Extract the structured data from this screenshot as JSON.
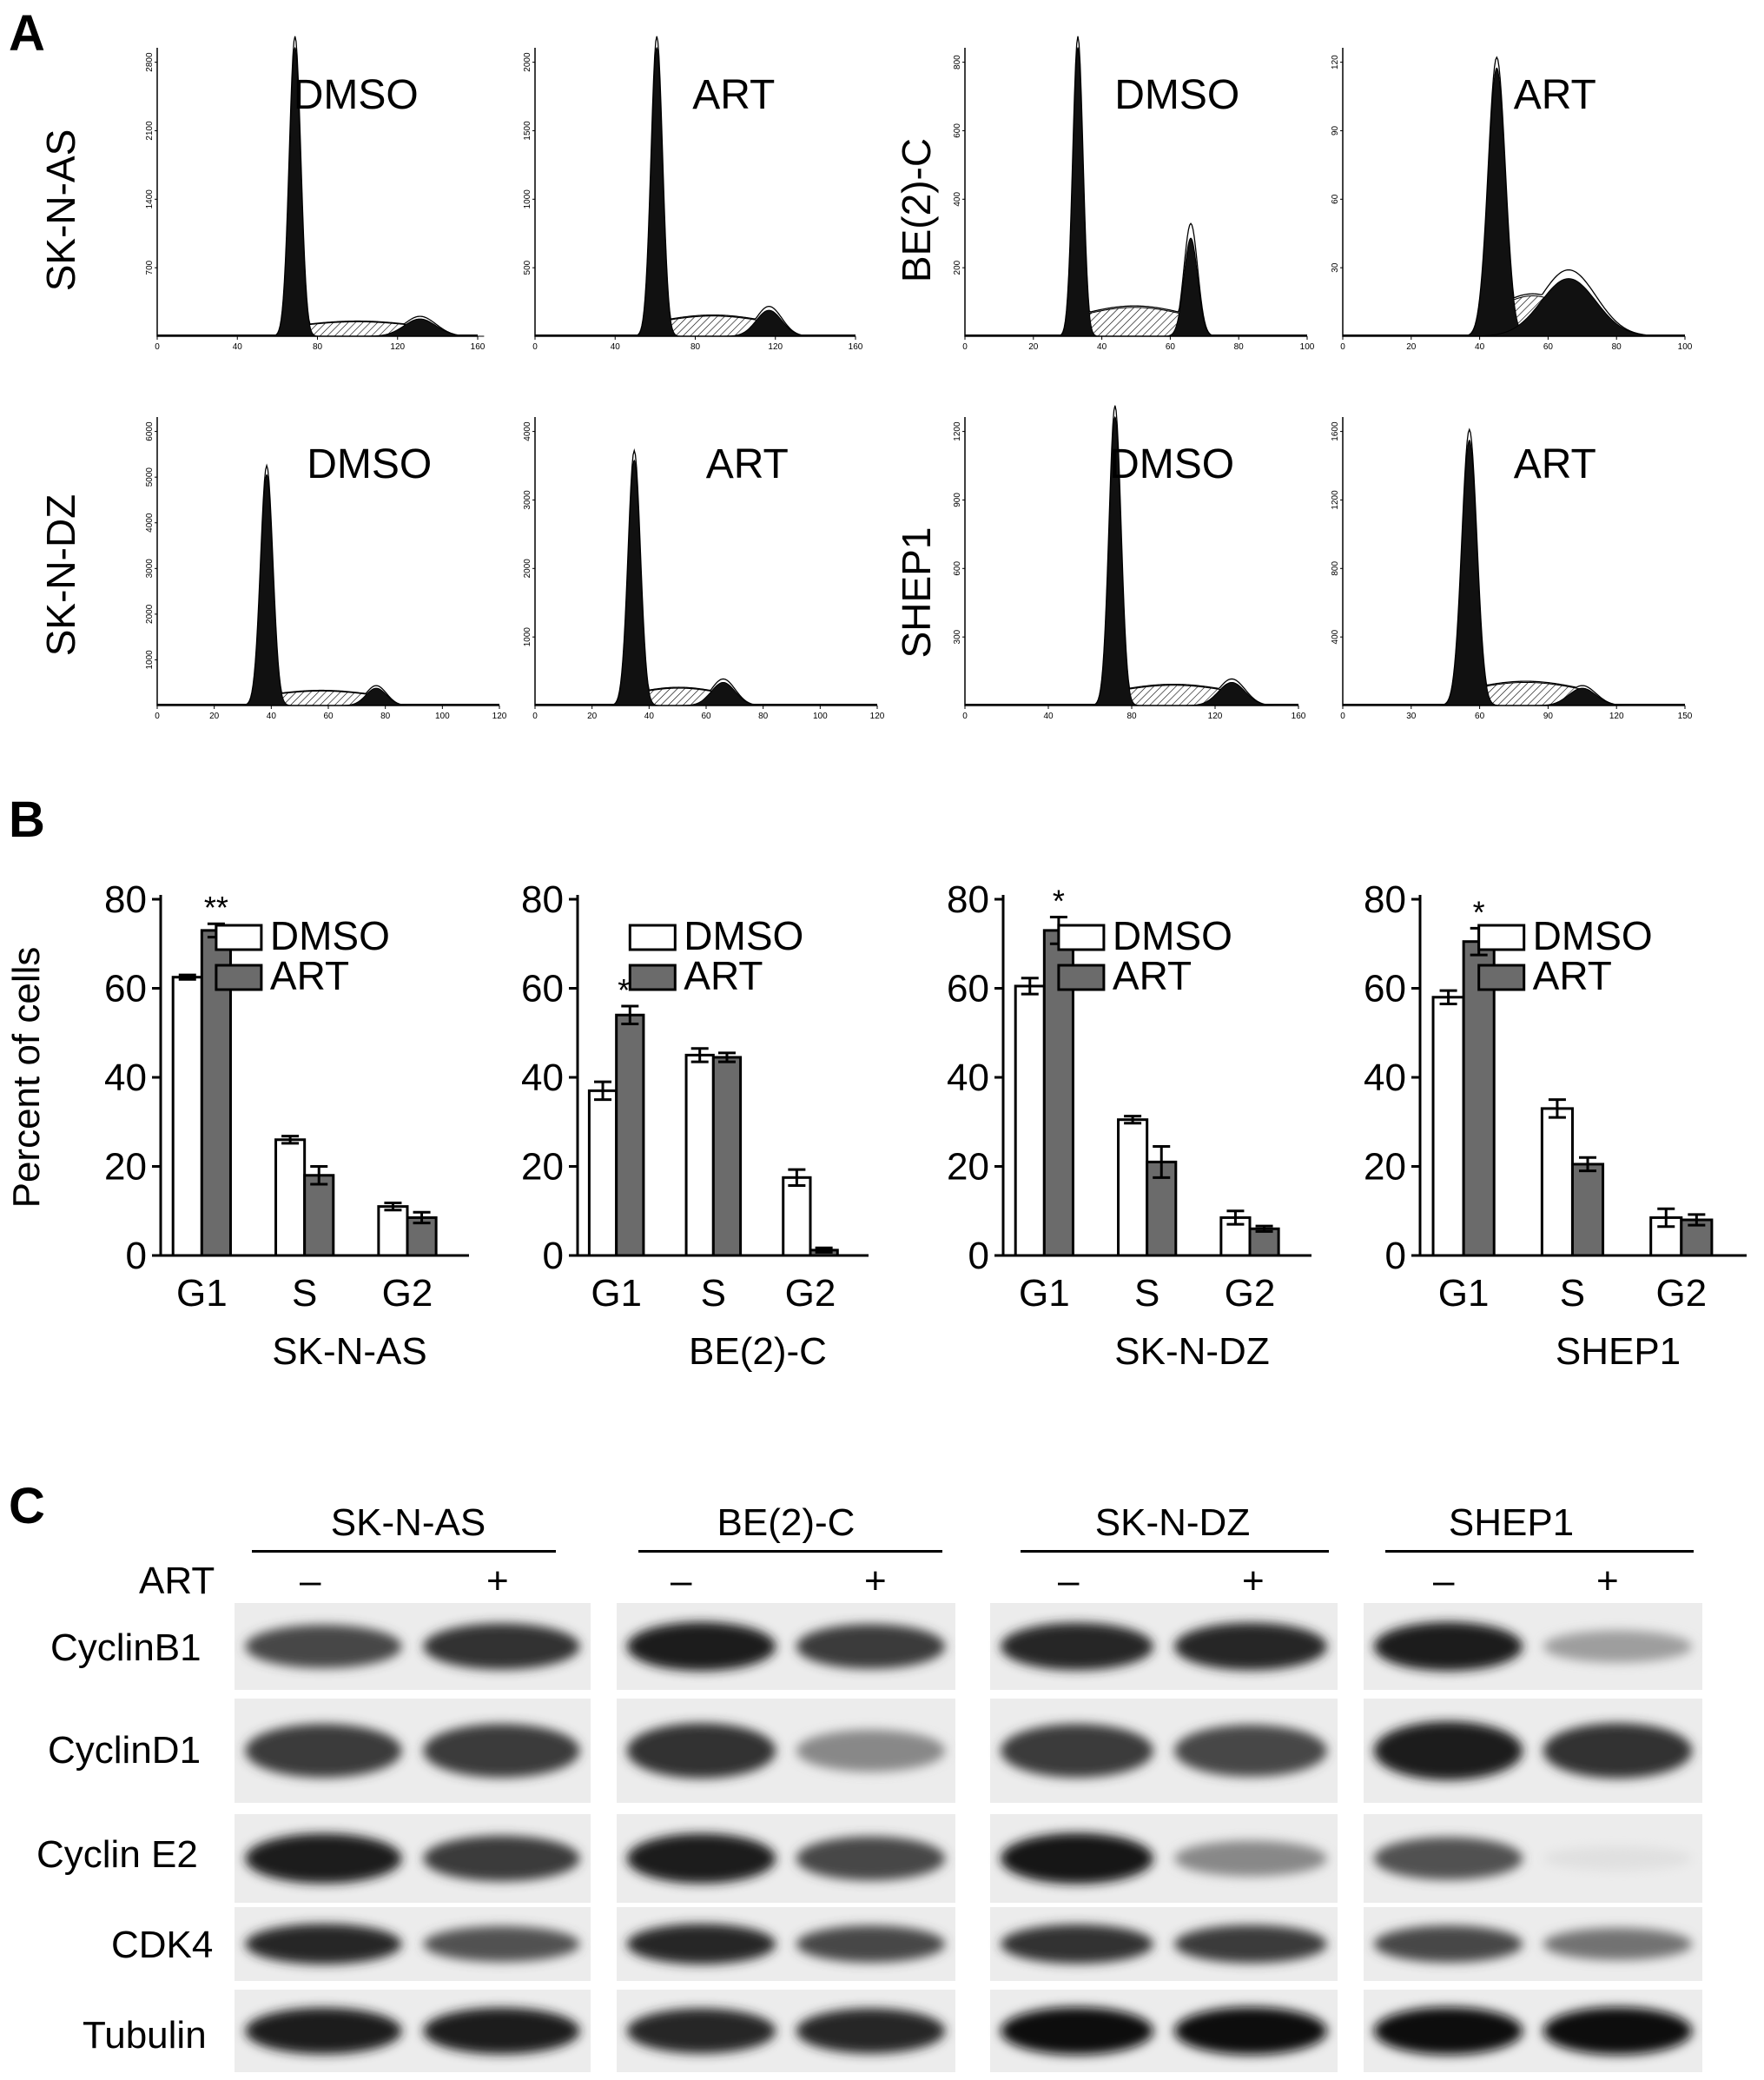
{
  "panels": {
    "a": "A",
    "b": "B",
    "c": "C"
  },
  "panel_a": {
    "row_labels": [
      "SK-N-AS",
      "SK-N-DZ"
    ],
    "right_row_labels": [
      "BE(2)-C",
      "SHEP1"
    ],
    "histograms": [
      {
        "cell": "SK-N-AS",
        "treatment": "DMSO",
        "x_ticks": [
          "0",
          "40",
          "80",
          "120",
          "160"
        ],
        "y_ticks": [
          "0",
          "700",
          "1400",
          "2100",
          "2800"
        ],
        "peaks": [
          {
            "pos": 0.43,
            "h": 1.0,
            "w": 0.018
          },
          {
            "pos": 0.82,
            "h": 0.06,
            "w": 0.05
          }
        ],
        "s_level": 0.05
      },
      {
        "cell": "SK-N-AS",
        "treatment": "ART",
        "x_ticks": [
          "0",
          "40",
          "80",
          "120",
          "160"
        ],
        "y_ticks": [
          "0",
          "500",
          "1000",
          "1500",
          "2000"
        ],
        "peaks": [
          {
            "pos": 0.38,
            "h": 1.0,
            "w": 0.018
          },
          {
            "pos": 0.73,
            "h": 0.09,
            "w": 0.04
          }
        ],
        "s_level": 0.07
      },
      {
        "cell": "BE(2)-C",
        "treatment": "DMSO",
        "x_ticks": [
          "0",
          "20",
          "40",
          "60",
          "80",
          "100"
        ],
        "y_ticks": [
          "0",
          "200",
          "400",
          "600",
          "800"
        ],
        "peaks": [
          {
            "pos": 0.33,
            "h": 1.0,
            "w": 0.015
          },
          {
            "pos": 0.66,
            "h": 0.34,
            "w": 0.02
          }
        ],
        "s_level": 0.1
      },
      {
        "cell": "BE(2)-C",
        "treatment": "ART",
        "x_ticks": [
          "0",
          "20",
          "40",
          "60",
          "80",
          "100"
        ],
        "y_ticks": [
          "0",
          "30",
          "60",
          "90",
          "120"
        ],
        "peaks": [
          {
            "pos": 0.45,
            "h": 0.93,
            "w": 0.025
          },
          {
            "pos": 0.66,
            "h": 0.2,
            "w": 0.08
          }
        ],
        "s_level": 0.14
      },
      {
        "cell": "SK-N-DZ",
        "treatment": "DMSO",
        "x_ticks": [
          "0",
          "20",
          "40",
          "60",
          "80",
          "100",
          "120"
        ],
        "y_ticks": [
          "0",
          "1000",
          "2000",
          "3000",
          "4000",
          "5000",
          "6000"
        ],
        "peaks": [
          {
            "pos": 0.32,
            "h": 0.8,
            "w": 0.018
          },
          {
            "pos": 0.64,
            "h": 0.06,
            "w": 0.03
          }
        ],
        "s_level": 0.05
      },
      {
        "cell": "SK-N-DZ",
        "treatment": "ART",
        "x_ticks": [
          "0",
          "20",
          "40",
          "60",
          "80",
          "100",
          "120"
        ],
        "y_ticks": [
          "0",
          "1000",
          "2000",
          "3000",
          "4000"
        ],
        "peaks": [
          {
            "pos": 0.29,
            "h": 0.85,
            "w": 0.018
          },
          {
            "pos": 0.55,
            "h": 0.08,
            "w": 0.035
          }
        ],
        "s_level": 0.06
      },
      {
        "cell": "SHEP1",
        "treatment": "DMSO",
        "x_ticks": [
          "0",
          "40",
          "80",
          "120",
          "160"
        ],
        "y_ticks": [
          "0",
          "300",
          "600",
          "900",
          "1200"
        ],
        "peaks": [
          {
            "pos": 0.45,
            "h": 1.0,
            "w": 0.018
          },
          {
            "pos": 0.8,
            "h": 0.08,
            "w": 0.04
          }
        ],
        "s_level": 0.07
      },
      {
        "cell": "SHEP1",
        "treatment": "ART",
        "x_ticks": [
          "0",
          "30",
          "60",
          "90",
          "120",
          "150"
        ],
        "y_ticks": [
          "0",
          "400",
          "800",
          "1200",
          "1600"
        ],
        "peaks": [
          {
            "pos": 0.37,
            "h": 0.92,
            "w": 0.022
          },
          {
            "pos": 0.7,
            "h": 0.06,
            "w": 0.04
          }
        ],
        "s_level": 0.08
      }
    ]
  },
  "chart_data": [
    {
      "type": "bar",
      "title": "SK-N-AS",
      "ylabel": "Percent of cells",
      "xlabel": "",
      "ylim": [
        0,
        80
      ],
      "yticks": [
        "0",
        "20",
        "40",
        "60",
        "80"
      ],
      "categories": [
        "G1",
        "S",
        "G2"
      ],
      "series": [
        {
          "name": "DMSO",
          "values": [
            62.5,
            26,
            11
          ],
          "errors": [
            0.5,
            0.8,
            0.8
          ]
        },
        {
          "name": "ART",
          "values": [
            73,
            18,
            8.5
          ],
          "errors": [
            1.5,
            2,
            1.2
          ]
        }
      ],
      "annotations": [
        {
          "category": "G1",
          "text": "**"
        }
      ],
      "colors": {
        "DMSO": "#ffffff",
        "ART": "#6b6b6b"
      }
    },
    {
      "type": "bar",
      "title": "BE(2)-C",
      "ylabel": "",
      "xlabel": "",
      "ylim": [
        0,
        80
      ],
      "yticks": [
        "0",
        "20",
        "40",
        "60",
        "80"
      ],
      "categories": [
        "G1",
        "S",
        "G2"
      ],
      "series": [
        {
          "name": "DMSO",
          "values": [
            37,
            45,
            17.5
          ],
          "errors": [
            2,
            1.5,
            1.8
          ]
        },
        {
          "name": "ART",
          "values": [
            54,
            44.5,
            1.2
          ],
          "errors": [
            2,
            1,
            0.5
          ]
        }
      ],
      "annotations": [
        {
          "category": "G1",
          "text": "**"
        }
      ],
      "colors": {
        "DMSO": "#ffffff",
        "ART": "#6b6b6b"
      }
    },
    {
      "type": "bar",
      "title": "SK-N-DZ",
      "ylabel": "",
      "xlabel": "",
      "ylim": [
        0,
        80
      ],
      "yticks": [
        "0",
        "20",
        "40",
        "60",
        "80"
      ],
      "categories": [
        "G1",
        "S",
        "G2"
      ],
      "series": [
        {
          "name": "DMSO",
          "values": [
            60.5,
            30.5,
            8.5
          ],
          "errors": [
            1.8,
            0.8,
            1.5
          ]
        },
        {
          "name": "ART",
          "values": [
            73,
            21,
            6
          ],
          "errors": [
            3,
            3.5,
            0.6
          ]
        }
      ],
      "annotations": [
        {
          "category": "G1",
          "text": "*"
        }
      ],
      "colors": {
        "DMSO": "#ffffff",
        "ART": "#6b6b6b"
      }
    },
    {
      "type": "bar",
      "title": "SHEP1",
      "ylabel": "",
      "xlabel": "",
      "ylim": [
        0,
        80
      ],
      "yticks": [
        "0",
        "20",
        "40",
        "60",
        "80"
      ],
      "categories": [
        "G1",
        "S",
        "G2"
      ],
      "series": [
        {
          "name": "DMSO",
          "values": [
            58,
            33,
            8.5
          ],
          "errors": [
            1.5,
            2,
            2
          ]
        },
        {
          "name": "ART",
          "values": [
            70.5,
            20.5,
            8
          ],
          "errors": [
            3,
            1.5,
            1.2
          ]
        }
      ],
      "annotations": [
        {
          "category": "G1",
          "text": "*"
        }
      ],
      "colors": {
        "DMSO": "#ffffff",
        "ART": "#6b6b6b"
      }
    }
  ],
  "panel_c": {
    "treatment_label": "ART",
    "minus_sign": "–",
    "plus_sign": "+",
    "cell_lines": [
      "SK-N-AS",
      "BE(2)-C",
      "SK-N-DZ",
      "SHEP1"
    ],
    "proteins": [
      "CyclinB1",
      "CyclinD1",
      "Cyclin E2",
      "CDK4",
      "Tubulin"
    ],
    "band_intensity": [
      [
        [
          0.75,
          0.85
        ],
        [
          0.95,
          0.8
        ],
        [
          0.9,
          0.9
        ],
        [
          0.95,
          0.35
        ]
      ],
      [
        [
          0.8,
          0.8
        ],
        [
          0.85,
          0.45
        ],
        [
          0.8,
          0.75
        ],
        [
          0.95,
          0.85
        ]
      ],
      [
        [
          0.95,
          0.8
        ],
        [
          0.95,
          0.75
        ],
        [
          0.98,
          0.45
        ],
        [
          0.7,
          0.05
        ]
      ],
      [
        [
          0.9,
          0.7
        ],
        [
          0.9,
          0.75
        ],
        [
          0.85,
          0.8
        ],
        [
          0.75,
          0.55
        ]
      ],
      [
        [
          0.95,
          0.95
        ],
        [
          0.9,
          0.9
        ],
        [
          1.0,
          1.0
        ],
        [
          1.0,
          1.0
        ]
      ]
    ]
  }
}
